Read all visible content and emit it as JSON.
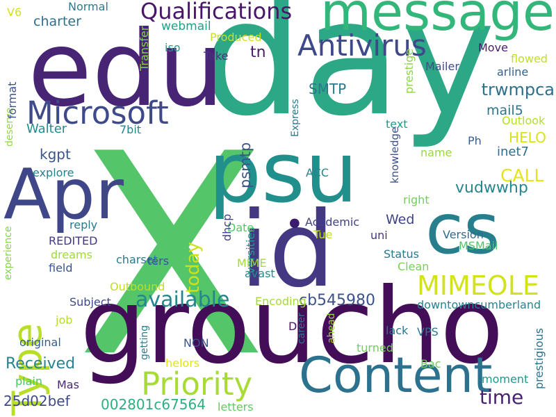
{
  "words": [
    {
      "text": "day",
      "color": "#2da886",
      "rotate": false
    },
    {
      "text": "X",
      "color": "#54c568",
      "rotate": false
    },
    {
      "text": "edu",
      "color": "#482475",
      "rotate": false
    },
    {
      "text": "groucho",
      "color": "#440d57",
      "rotate": false
    },
    {
      "text": "psu",
      "color": "#21908d",
      "rotate": false
    },
    {
      "text": "cs",
      "color": "#277f8e",
      "rotate": false
    },
    {
      "text": "message",
      "color": "#33b67a",
      "rotate": false
    },
    {
      "text": "Apr",
      "color": "#3f4788",
      "rotate": false
    },
    {
      "text": "id",
      "color": "#453882",
      "rotate": false
    },
    {
      "text": "Content",
      "color": "#2c728e",
      "rotate": false
    },
    {
      "text": "Type",
      "color": "#b8de29",
      "rotate": true
    },
    {
      "text": "Microsoft",
      "color": "#3f4a8a",
      "rotate": false
    },
    {
      "text": "Priority",
      "color": "#a8db34",
      "rotate": false
    },
    {
      "text": "MIMEOLE",
      "color": "#d2e21b",
      "rotate": false
    },
    {
      "text": "Antivirus",
      "color": "#3f4889",
      "rotate": false
    },
    {
      "text": "Qualifications",
      "color": "#481769",
      "rotate": false
    },
    {
      "text": "available",
      "color": "#24878e",
      "rotate": false
    },
    {
      "text": "today",
      "color": "#cde11d",
      "rotate": true
    },
    {
      "text": "CALL",
      "color": "#e5e419",
      "rotate": false
    },
    {
      "text": "time",
      "color": "#482071",
      "rotate": false
    },
    {
      "text": "psmtp",
      "color": "#3b528b",
      "rotate": true
    },
    {
      "text": "trwmpca",
      "color": "#2d708e",
      "rotate": false
    },
    {
      "text": "vudwwhp",
      "color": "#24868e",
      "rotate": false
    },
    {
      "text": "Received",
      "color": "#26828e",
      "rotate": false
    },
    {
      "text": "cb545980",
      "color": "#3b528b",
      "rotate": false
    },
    {
      "text": "25d02bef",
      "color": "#3e4a89",
      "rotate": false
    },
    {
      "text": "002801c67564",
      "color": "#2ab07f",
      "rotate": false
    },
    {
      "text": "downtowncumberland",
      "color": "#25848e",
      "rotate": false
    },
    {
      "text": "HELO",
      "color": "#d8e219",
      "rotate": false
    },
    {
      "text": "mail5",
      "color": "#2c738e",
      "rotate": false
    },
    {
      "text": "inet7",
      "color": "#2e6e8e",
      "rotate": false
    },
    {
      "text": "kgpt",
      "color": "#3a548c",
      "rotate": false
    },
    {
      "text": "Walter",
      "color": "#228c8d",
      "rotate": false
    },
    {
      "text": "tn",
      "color": "#481a6c",
      "rotate": false
    },
    {
      "text": "SMTP",
      "color": "#2a778e",
      "rotate": false
    },
    {
      "text": "webmail",
      "color": "#1fa088",
      "rotate": false
    },
    {
      "text": "charter",
      "color": "#2e6f8e",
      "rotate": false
    },
    {
      "text": "Wed",
      "color": "#404387",
      "rotate": false
    },
    {
      "text": "Version",
      "color": "#31688e",
      "rotate": false
    },
    {
      "text": "Status",
      "color": "#2a788e",
      "rotate": false
    },
    {
      "text": "Move",
      "color": "#481b6d",
      "rotate": false
    },
    {
      "text": "Mailer",
      "color": "#3e4c8a",
      "rotate": false
    },
    {
      "text": "arline",
      "color": "#34618d",
      "rotate": false
    },
    {
      "text": "flowed",
      "color": "#c2df23",
      "rotate": false
    },
    {
      "text": "Outlook",
      "color": "#b5de2b",
      "rotate": false
    },
    {
      "text": "prestige",
      "color": "#8bd646",
      "rotate": true
    },
    {
      "text": "text",
      "color": "#1e9b8a",
      "rotate": false
    },
    {
      "text": "knowledge",
      "color": "#3b518b",
      "rotate": true
    },
    {
      "text": "name",
      "color": "#98d83e",
      "rotate": false
    },
    {
      "text": "Ph",
      "color": "#355f8d",
      "rotate": false
    },
    {
      "text": "right",
      "color": "#73d056",
      "rotate": false
    },
    {
      "text": "MSMail",
      "color": "#52c569",
      "rotate": false
    },
    {
      "text": "Clean",
      "color": "#7ad151",
      "rotate": false
    },
    {
      "text": "lack",
      "color": "#2c738e",
      "rotate": false
    },
    {
      "text": "VPS",
      "color": "#2a778e",
      "rotate": false
    },
    {
      "text": "turned",
      "color": "#70cf57",
      "rotate": false
    },
    {
      "text": "Bac",
      "color": "#6ccd5a",
      "rotate": false
    },
    {
      "text": "moment",
      "color": "#1f988b",
      "rotate": false
    },
    {
      "text": "prestigious",
      "color": "#2c738e",
      "rotate": true
    },
    {
      "text": "Academic",
      "color": "#414287",
      "rotate": false
    },
    {
      "text": "uni",
      "color": "#463480",
      "rotate": false
    },
    {
      "text": "Tue",
      "color": "#c2df23",
      "rotate": false
    },
    {
      "text": "versities",
      "color": "#1f9e89",
      "rotate": true
    },
    {
      "text": "avast",
      "color": "#23898e",
      "rotate": false
    },
    {
      "text": "MIME",
      "color": "#a5db36",
      "rotate": false
    },
    {
      "text": "Date",
      "color": "#56c667",
      "rotate": false
    },
    {
      "text": "dhcp",
      "color": "#424186",
      "rotate": true
    },
    {
      "text": "ACC",
      "color": "#25848e",
      "rotate": false
    },
    {
      "text": "Express",
      "color": "#2a778e",
      "rotate": true
    },
    {
      "text": "Encoding",
      "color": "#a5db36",
      "rotate": false
    },
    {
      "text": "D",
      "color": "#471164",
      "rotate": false
    },
    {
      "text": "career",
      "color": "#2a788e",
      "rotate": true
    },
    {
      "text": "ahead",
      "color": "#9bd93c",
      "rotate": true
    },
    {
      "text": "NON",
      "color": "#3b528b",
      "rotate": false
    },
    {
      "text": "getting",
      "color": "#297a8e",
      "rotate": true
    },
    {
      "text": "helors",
      "color": "#e2e418",
      "rotate": false
    },
    {
      "text": "letters",
      "color": "#60ca60",
      "rotate": false
    },
    {
      "text": "Mas",
      "color": "#482677",
      "rotate": false
    },
    {
      "text": "plain",
      "color": "#4ec36b",
      "rotate": false
    },
    {
      "text": "original",
      "color": "#355e8d",
      "rotate": false
    },
    {
      "text": "job",
      "color": "#b5de2b",
      "rotate": false
    },
    {
      "text": "Subject",
      "color": "#3e4a89",
      "rotate": false
    },
    {
      "text": "Outbound",
      "color": "#bddf26",
      "rotate": false
    },
    {
      "text": "charset",
      "color": "#2a788e",
      "rotate": false
    },
    {
      "text": "ters",
      "color": "#3b528b",
      "rotate": false
    },
    {
      "text": "dreams",
      "color": "#a0da39",
      "rotate": false
    },
    {
      "text": "field",
      "color": "#39558c",
      "rotate": false
    },
    {
      "text": "REDITED",
      "color": "#453781",
      "rotate": false
    },
    {
      "text": "reply",
      "color": "#2a788e",
      "rotate": false
    },
    {
      "text": "experience",
      "color": "#84d44b",
      "rotate": true
    },
    {
      "text": "explore",
      "color": "#27808e",
      "rotate": false
    },
    {
      "text": "deserve",
      "color": "#95d840",
      "rotate": true
    },
    {
      "text": "format",
      "color": "#3b528b",
      "rotate": true
    },
    {
      "text": "7bit",
      "color": "#25848e",
      "rotate": false
    },
    {
      "text": "Transfer",
      "color": "#84d44b",
      "rotate": true
    },
    {
      "text": "Take",
      "color": "#463480",
      "rotate": false
    },
    {
      "text": "Produced",
      "color": "#c8e020",
      "rotate": false
    },
    {
      "text": "iso",
      "color": "#1f9e89",
      "rotate": false
    },
    {
      "text": "Normal",
      "color": "#297b8e",
      "rotate": false
    },
    {
      "text": "V6",
      "color": "#d2e21b",
      "rotate": false
    }
  ]
}
